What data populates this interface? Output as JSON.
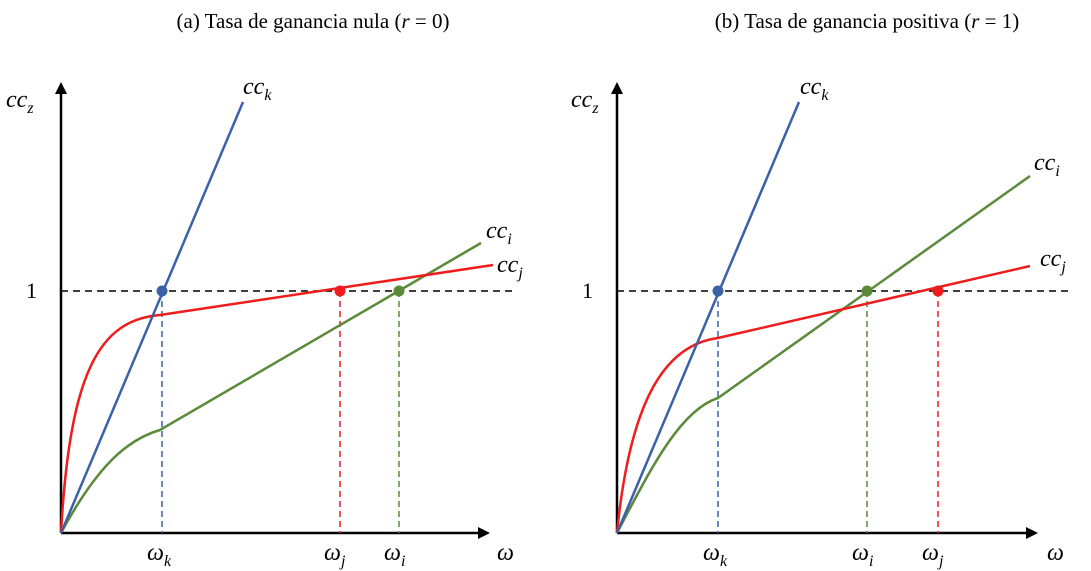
{
  "colors": {
    "axis": "#000000",
    "k": "#3b62a7",
    "i": "#5a8a3a",
    "j": "#ee1c1c",
    "guide": "#000000"
  },
  "panels": [
    {
      "id": "a",
      "title_pre": "(a) Tasa de ganancia nula (",
      "title_var": "r",
      "title_post": " = 0)",
      "y_axis_label": {
        "base": "cc",
        "sub": "z"
      },
      "x_axis_label": "ω",
      "level_label": "1",
      "curve_labels": {
        "k": {
          "base": "cc",
          "sub": "k"
        },
        "i": {
          "base": "cc",
          "sub": "i"
        },
        "j": {
          "base": "cc",
          "sub": "j"
        }
      },
      "x_ticks": [
        {
          "base": "ω",
          "sub": "k",
          "color": "k"
        },
        {
          "base": "ω",
          "sub": "j",
          "color": "j"
        },
        {
          "base": "ω",
          "sub": "i",
          "color": "i"
        }
      ]
    },
    {
      "id": "b",
      "title_pre": "(b) Tasa de ganancia positiva (",
      "title_var": "r",
      "title_post": " = 1)",
      "y_axis_label": {
        "base": "cc",
        "sub": "z"
      },
      "x_axis_label": "ω",
      "level_label": "1",
      "curve_labels": {
        "k": {
          "base": "cc",
          "sub": "k"
        },
        "i": {
          "base": "cc",
          "sub": "i"
        },
        "j": {
          "base": "cc",
          "sub": "j"
        }
      },
      "x_ticks": [
        {
          "base": "ω",
          "sub": "k",
          "color": "k"
        },
        {
          "base": "ω",
          "sub": "i",
          "color": "i"
        },
        {
          "base": "ω",
          "sub": "j",
          "color": "j"
        }
      ]
    }
  ]
}
